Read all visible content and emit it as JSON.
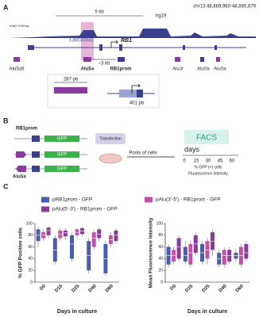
{
  "panel_a": {
    "label": "A",
    "coords": "chr13:48,869,960-48,885,679",
    "scale": "5 kb",
    "assembly": "hg19",
    "track": "K562 H3K9ac",
    "genes": [
      "LINC00441",
      "RB1"
    ],
    "distance": "~3 kb",
    "elements": [
      "AluSz6",
      "AluSx",
      "RB1prom",
      "AluJr",
      "AluSx",
      "AluSx"
    ],
    "sizes": [
      "287 pb",
      "401 pb"
    ]
  },
  "panel_b": {
    "label": "B",
    "promoter": "RB1prom",
    "reporter": "GFP",
    "alu": "AluSx",
    "step1": "Transfection",
    "step2": "Pools of cells",
    "assay": "FACS",
    "timeline_label": "days",
    "days": [
      "0",
      "15",
      "30",
      "45",
      "60"
    ],
    "readouts": [
      "% GFP (+) cells",
      "Fluorescence intensity"
    ]
  },
  "panel_c": {
    "label": "C"
  },
  "chart_data": [
    {
      "type": "box",
      "y_label": "% GFP Positive cells",
      "x_label": "Days in culture",
      "categories": [
        "D0",
        "D15",
        "D25",
        "D40",
        "D60"
      ],
      "ylim": [
        0,
        100
      ],
      "yticks": [
        0,
        20,
        40,
        60,
        80,
        100
      ],
      "series": [
        {
          "name": "pRB1prom - GFP",
          "color": "#4a5bb0",
          "values": [
            {
              "min": 60,
              "q1": 70,
              "median": 80,
              "q3": 90,
              "max": 95
            },
            {
              "min": 30,
              "q1": 35,
              "median": 55,
              "q3": 75,
              "max": 80
            },
            {
              "min": 35,
              "q1": 40,
              "median": 65,
              "q3": 80,
              "max": 85
            },
            {
              "min": 15,
              "q1": 20,
              "median": 45,
              "q3": 70,
              "max": 75
            },
            {
              "min": 10,
              "q1": 15,
              "median": 40,
              "q3": 65,
              "max": 70
            }
          ]
        },
        {
          "name": "pAlu(3'-5') - RB1prom - GFP",
          "color": "#c64fa6",
          "values": [
            {
              "min": 70,
              "q1": 75,
              "median": 80,
              "q3": 85,
              "max": 90
            },
            {
              "min": 70,
              "q1": 75,
              "median": 82,
              "q3": 88,
              "max": 92
            },
            {
              "min": 75,
              "q1": 80,
              "median": 85,
              "q3": 90,
              "max": 93
            },
            {
              "min": 55,
              "q1": 60,
              "median": 75,
              "q3": 85,
              "max": 88
            },
            {
              "min": 60,
              "q1": 65,
              "median": 72,
              "q3": 80,
              "max": 85
            }
          ]
        },
        {
          "name": "pAlu(5'-3') - RB1prom - GFP",
          "color": "#8a3a9e",
          "values": [
            {
              "min": 75,
              "q1": 80,
              "median": 88,
              "q3": 93,
              "max": 96
            },
            {
              "min": 72,
              "q1": 78,
              "median": 84,
              "q3": 88,
              "max": 92
            },
            {
              "min": 78,
              "q1": 82,
              "median": 87,
              "q3": 92,
              "max": 95
            },
            {
              "min": 70,
              "q1": 75,
              "median": 82,
              "q3": 90,
              "max": 93
            },
            {
              "min": 65,
              "q1": 70,
              "median": 80,
              "q3": 88,
              "max": 92
            }
          ]
        }
      ]
    },
    {
      "type": "box",
      "y_label": "Mean Fluorescence Intensity",
      "x_label": "Days in culture",
      "categories": [
        "D0",
        "D15",
        "D25",
        "D40",
        "D60"
      ],
      "ylim": [
        0,
        100
      ],
      "yticks": [
        0,
        20,
        40,
        60,
        80,
        100
      ],
      "series": [
        {
          "color": "#4a5bb0",
          "values": [
            {
              "min": 25,
              "q1": 30,
              "median": 45,
              "q3": 60,
              "max": 65
            },
            {
              "min": 30,
              "q1": 35,
              "median": 45,
              "q3": 60,
              "max": 70
            },
            {
              "min": 30,
              "q1": 35,
              "median": 50,
              "q3": 65,
              "max": 70
            },
            {
              "min": 25,
              "q1": 30,
              "median": 40,
              "q3": 50,
              "max": 55
            },
            {
              "min": 35,
              "q1": 40,
              "median": 45,
              "q3": 50,
              "max": 55
            }
          ]
        },
        {
          "color": "#c64fa6",
          "values": [
            {
              "min": 30,
              "q1": 35,
              "median": 45,
              "q3": 55,
              "max": 60
            },
            {
              "min": 25,
              "q1": 30,
              "median": 50,
              "q3": 65,
              "max": 70
            },
            {
              "min": 30,
              "q1": 40,
              "median": 55,
              "q3": 70,
              "max": 75
            },
            {
              "min": 25,
              "q1": 30,
              "median": 45,
              "q3": 55,
              "max": 60
            },
            {
              "min": 25,
              "q1": 30,
              "median": 45,
              "q3": 60,
              "max": 65
            }
          ]
        },
        {
          "color": "#8a3a9e",
          "values": [
            {
              "min": 35,
              "q1": 40,
              "median": 60,
              "q3": 75,
              "max": 80
            },
            {
              "min": 45,
              "q1": 50,
              "median": 65,
              "q3": 80,
              "max": 85
            },
            {
              "min": 45,
              "q1": 55,
              "median": 70,
              "q3": 85,
              "max": 90
            },
            {
              "min": 30,
              "q1": 35,
              "median": 45,
              "q3": 55,
              "max": 60
            },
            {
              "min": 35,
              "q1": 40,
              "median": 50,
              "q3": 65,
              "max": 70
            }
          ]
        }
      ]
    }
  ]
}
